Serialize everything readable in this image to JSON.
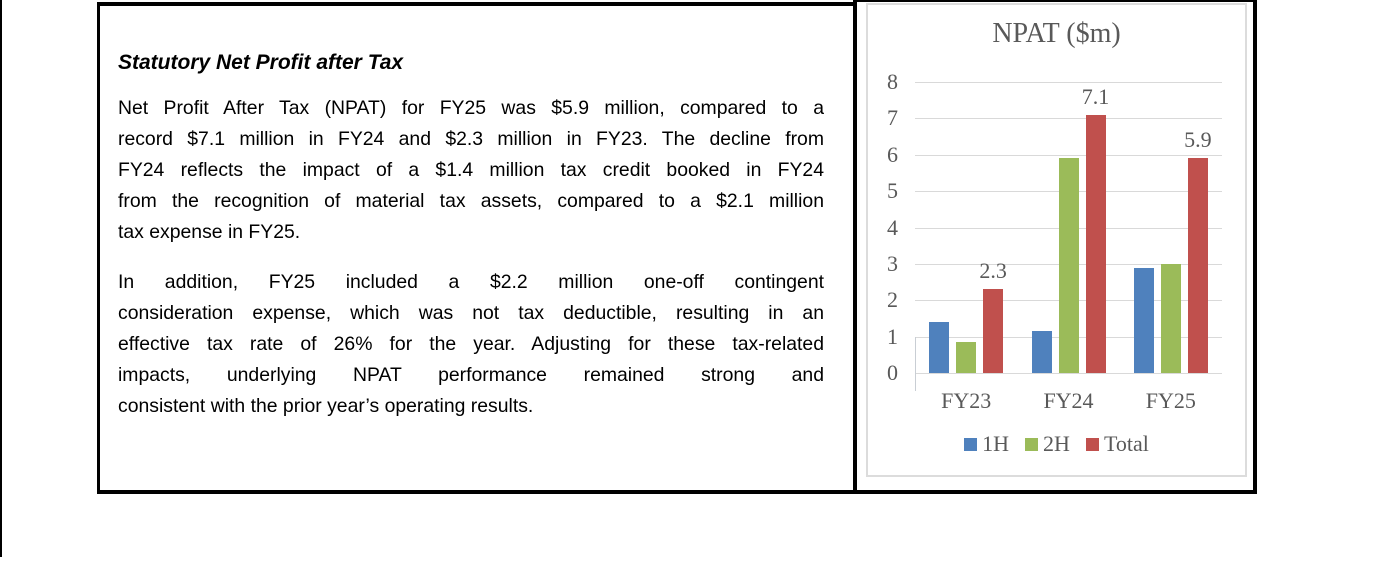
{
  "document": {
    "heading": "Statutory Net Profit after Tax",
    "paragraphs": [
      {
        "lines": [
          "Net Profit After Tax (NPAT) for FY25 was $5.9 million, compared to a",
          "record $7.1 million in FY24 and $2.3 million in FY23. The decline from",
          "FY24 reflects the impact of a $1.4 million tax credit booked in FY24",
          "from the recognition of material tax assets, compared to a $2.1 million",
          "tax expense in FY25."
        ]
      },
      {
        "lines": [
          "In addition, FY25 included a $2.2 million one-off contingent",
          "consideration expense, which was not tax deductible, resulting in an",
          "effective tax rate of 26% for the year. Adjusting for these tax-related",
          "impacts, underlying NPAT performance remained strong and",
          "consistent with the prior year’s operating results."
        ]
      }
    ]
  },
  "chart_data": {
    "type": "bar",
    "title": "NPAT ($m)",
    "categories": [
      "FY23",
      "FY24",
      "FY25"
    ],
    "series": [
      {
        "name": "1H",
        "color": "#4F81BD",
        "values": [
          1.4,
          1.15,
          2.9
        ]
      },
      {
        "name": "2H",
        "color": "#9BBB59",
        "values": [
          0.85,
          5.9,
          3.0
        ]
      },
      {
        "name": "Total",
        "color": "#C0504D",
        "values": [
          2.3,
          7.1,
          5.9
        ]
      }
    ],
    "data_labels": {
      "series": "Total",
      "values": [
        "2.3",
        "7.1",
        "5.9"
      ]
    },
    "ylim": [
      0,
      8
    ],
    "ytick_step": 1,
    "yticks": [
      "0",
      "1",
      "2",
      "3",
      "4",
      "5",
      "6",
      "7",
      "8"
    ],
    "grid": true,
    "legend_position": "bottom",
    "colors": {
      "axis_text": "#595959",
      "gridline": "#D9D9D9",
      "panel_border": "#DCDCDC"
    }
  }
}
